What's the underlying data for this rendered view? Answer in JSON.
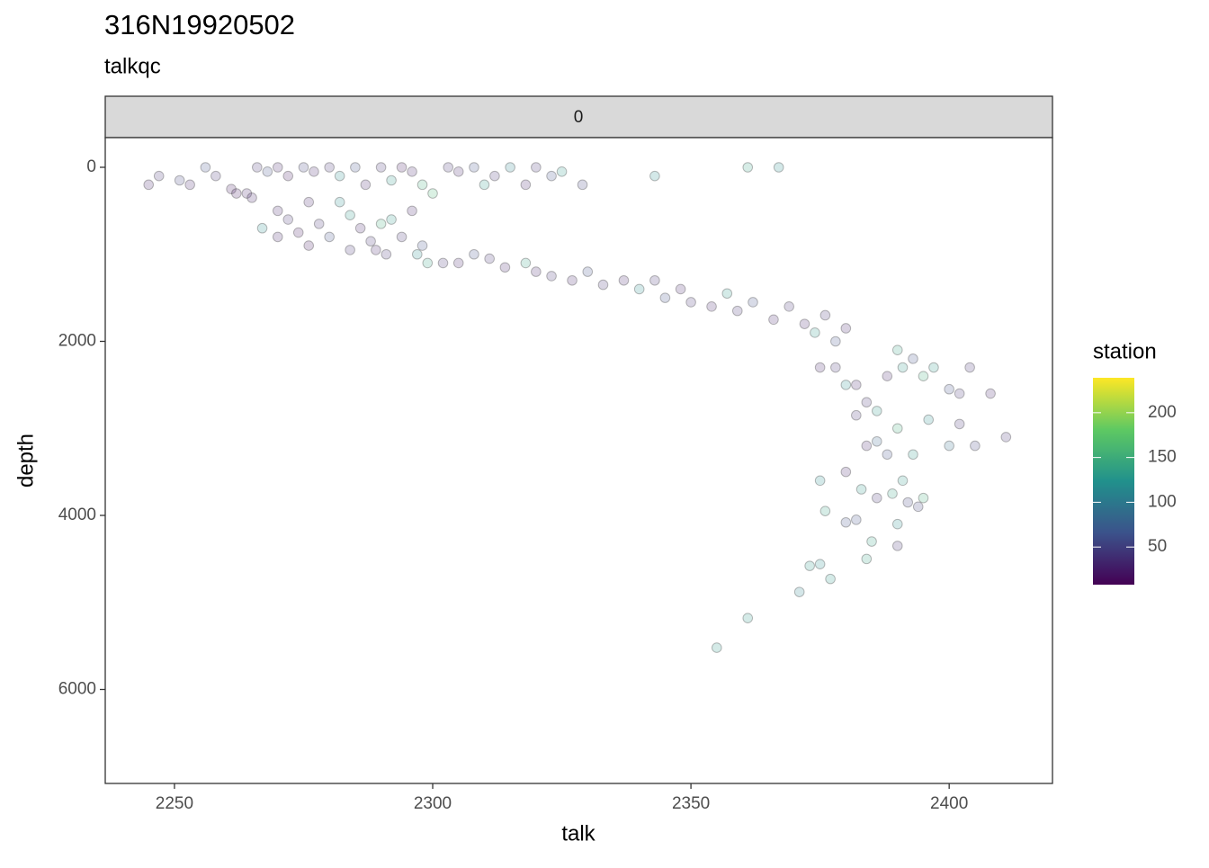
{
  "chart_data": {
    "type": "scatter",
    "title": "316N19920502",
    "subtitle": "talkqc",
    "facet_label": "0",
    "x_label": "talk",
    "y_label": "depth",
    "color_label": "station",
    "colormap": "viridis",
    "xlim": [
      2236.6,
      2420
    ],
    "xticks": [
      2250,
      2300,
      2350,
      2400
    ],
    "ylim": [
      -341,
      7080
    ],
    "yticks": [
      0,
      2000,
      4000,
      6000
    ],
    "y_reversed": true,
    "clim": [
      8,
      239
    ],
    "cticks": [
      50,
      100,
      150,
      200
    ],
    "x": [
      2245,
      2247,
      2251,
      2253,
      2256,
      2258,
      2261,
      2264,
      2266,
      2268,
      2270,
      2272,
      2275,
      2277,
      2280,
      2282,
      2285,
      2287,
      2290,
      2292,
      2294,
      2296,
      2298,
      2300,
      2303,
      2305,
      2308,
      2310,
      2312,
      2315,
      2318,
      2320,
      2323,
      2325,
      2329,
      2343,
      2361,
      2367,
      2262,
      2265,
      2267,
      2270,
      2272,
      2274,
      2276,
      2278,
      2280,
      2282,
      2284,
      2286,
      2288,
      2290,
      2292,
      2294,
      2296,
      2298,
      2284,
      2270,
      2276,
      2289,
      2291,
      2297,
      2299,
      2302,
      2305,
      2308,
      2311,
      2314,
      2318,
      2320,
      2323,
      2327,
      2330,
      2333,
      2337,
      2340,
      2343,
      2345,
      2348,
      2350,
      2354,
      2357,
      2359,
      2362,
      2366,
      2369,
      2372,
      2374,
      2376,
      2378,
      2380,
      2375,
      2378,
      2380,
      2382,
      2384,
      2386,
      2388,
      2390,
      2391,
      2393,
      2395,
      2397,
      2400,
      2402,
      2404,
      2408,
      2411,
      2405,
      2402,
      2400,
      2396,
      2393,
      2390,
      2388,
      2386,
      2384,
      2382,
      2380,
      2383,
      2386,
      2389,
      2391,
      2394,
      2395,
      2390,
      2385,
      2384,
      2382,
      2390,
      2375,
      2376,
      2373,
      2375,
      2377,
      2371,
      2361,
      2355,
      2380,
      2392
    ],
    "y": [
      200,
      100,
      150,
      200,
      0,
      100,
      250,
      300,
      0,
      50,
      0,
      100,
      0,
      50,
      0,
      100,
      0,
      200,
      0,
      150,
      0,
      50,
      200,
      300,
      0,
      50,
      0,
      200,
      100,
      0,
      200,
      0,
      100,
      50,
      200,
      100,
      0,
      0,
      300,
      350,
      700,
      500,
      600,
      750,
      400,
      650,
      800,
      400,
      550,
      700,
      850,
      650,
      600,
      800,
      500,
      900,
      950,
      800,
      900,
      950,
      1000,
      1000,
      1100,
      1100,
      1100,
      1000,
      1050,
      1150,
      1100,
      1200,
      1250,
      1300,
      1200,
      1350,
      1300,
      1400,
      1300,
      1500,
      1400,
      1550,
      1600,
      1450,
      1650,
      1550,
      1750,
      1600,
      1800,
      1900,
      1700,
      2000,
      1850,
      2300,
      2300,
      2500,
      2500,
      2700,
      2800,
      2400,
      2100,
      2300,
      2200,
      2400,
      2300,
      2550,
      2600,
      2300,
      2600,
      3100,
      3200,
      2950,
      3200,
      2900,
      3300,
      3000,
      3300,
      3150,
      3200,
      2850,
      3500,
      3700,
      3800,
      3750,
      3600,
      3900,
      3800,
      4100,
      4300,
      4500,
      4050,
      4350,
      3600,
      3950,
      4580,
      4560,
      4730,
      4880,
      5180,
      5520,
      4080,
      3850
    ],
    "color_values": [
      30,
      40,
      50,
      30,
      60,
      40,
      20,
      30,
      40,
      60,
      30,
      20,
      50,
      30,
      40,
      120,
      60,
      30,
      40,
      130,
      20,
      30,
      150,
      160,
      40,
      30,
      60,
      130,
      40,
      110,
      30,
      40,
      60,
      130,
      50,
      120,
      140,
      120,
      20,
      30,
      120,
      30,
      40,
      20,
      30,
      40,
      60,
      120,
      130,
      30,
      40,
      150,
      130,
      40,
      30,
      60,
      40,
      30,
      20,
      30,
      40,
      120,
      140,
      40,
      30,
      60,
      40,
      30,
      140,
      30,
      40,
      30,
      60,
      40,
      30,
      120,
      40,
      60,
      30,
      40,
      30,
      130,
      40,
      60,
      30,
      40,
      30,
      130,
      40,
      60,
      30,
      30,
      40,
      120,
      30,
      40,
      130,
      30,
      140,
      130,
      60,
      150,
      130,
      60,
      40,
      40,
      30,
      40,
      50,
      40,
      90,
      120,
      130,
      150,
      60,
      80,
      30,
      40,
      30,
      130,
      40,
      140,
      130,
      50,
      150,
      120,
      140,
      140,
      60,
      40,
      120,
      140,
      130,
      120,
      130,
      110,
      130,
      130,
      60,
      50
    ]
  }
}
